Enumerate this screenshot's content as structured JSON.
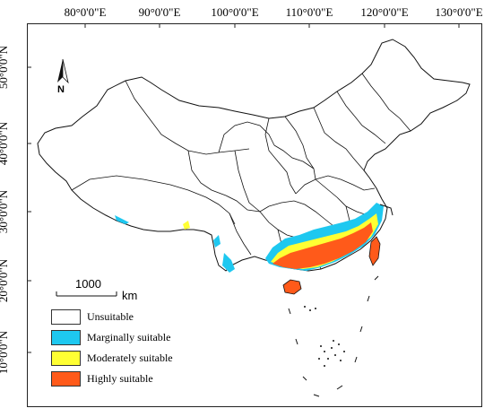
{
  "map": {
    "longitude_labels": [
      "80°0'0\"E",
      "90°0'0\"E",
      "100°0'0\"E",
      "110°0'0\"E",
      "120°0'0\"E",
      "130°0'0\"E"
    ],
    "latitude_labels": [
      "50°0'0\"N",
      "40°0'0\"N",
      "30°0'0\"N",
      "20°0'0\"N",
      "10°0'0\"N"
    ],
    "north_arrow": {
      "letter": "N",
      "icon": "north-arrow-icon"
    },
    "scale_bar": {
      "value": "1000",
      "unit": "km"
    }
  },
  "legend": [
    {
      "label": "Unsuitable",
      "color": "#ffffff"
    },
    {
      "label": "Marginally suitable",
      "color": "#1ec8f0"
    },
    {
      "label": "Moderately suitable",
      "color": "#ffff33"
    },
    {
      "label": "Highly suitable",
      "color": "#ff5a1a"
    }
  ]
}
